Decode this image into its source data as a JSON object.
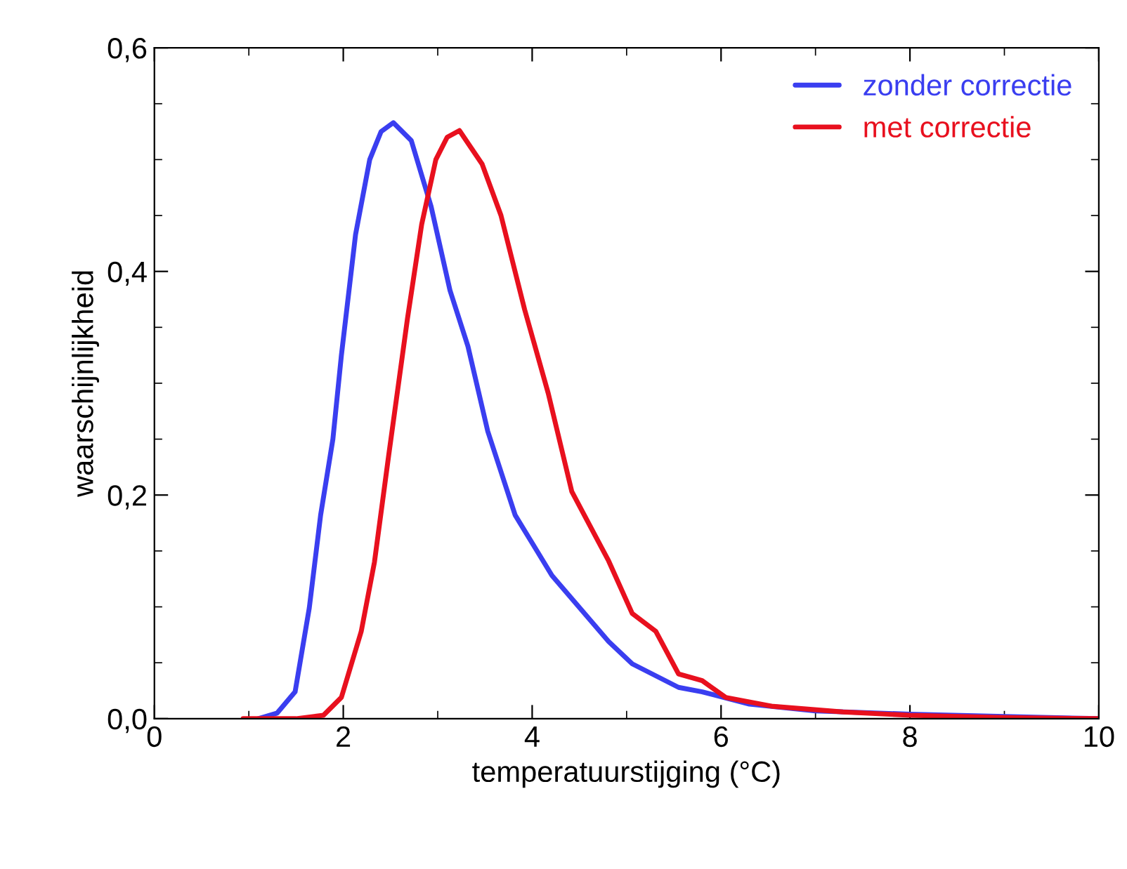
{
  "chart_data": {
    "type": "line",
    "xlabel": "temperatuurstijging (°C)",
    "ylabel": "waarschijnlijkheid",
    "xlim": [
      0,
      10
    ],
    "ylim": [
      0,
      0.6
    ],
    "xticks": [
      0,
      2,
      4,
      6,
      8,
      10
    ],
    "yticks": [
      {
        "value": 0,
        "label": "0,0"
      },
      {
        "value": 0.2,
        "label": "0,2"
      },
      {
        "value": 0.4,
        "label": "0,4"
      },
      {
        "value": 0.6,
        "label": "0,6"
      }
    ],
    "grid": false,
    "legend": "top right",
    "marker": "none",
    "line_style": "solid",
    "series": [
      {
        "name": "zonder correctie",
        "color": "#3a3ef0",
        "x": [
          1.1,
          1.3,
          1.49,
          1.64,
          1.76,
          1.89,
          1.98,
          2.13,
          2.28,
          2.4,
          2.53,
          2.72,
          2.93,
          3.13,
          3.32,
          3.53,
          3.82,
          4.21,
          4.81,
          5.06,
          5.55,
          5.8,
          6.3,
          7.0,
          8.0,
          9.0,
          10.0
        ],
        "values": [
          0.0,
          0.005,
          0.024,
          0.099,
          0.182,
          0.25,
          0.325,
          0.433,
          0.5,
          0.525,
          0.533,
          0.517,
          0.458,
          0.383,
          0.333,
          0.257,
          0.182,
          0.128,
          0.069,
          0.049,
          0.028,
          0.024,
          0.013,
          0.007,
          0.004,
          0.002,
          0.0
        ]
      },
      {
        "name": "met correctie",
        "color": "#e8101e",
        "x": [
          0.94,
          1.5,
          1.79,
          1.98,
          2.19,
          2.33,
          2.48,
          2.68,
          2.83,
          2.98,
          3.1,
          3.23,
          3.47,
          3.67,
          3.92,
          4.17,
          4.42,
          4.81,
          5.06,
          5.31,
          5.55,
          5.8,
          6.05,
          6.55,
          7.29,
          8.0,
          9.0,
          10.0
        ],
        "values": [
          0.0,
          0.0,
          0.003,
          0.019,
          0.078,
          0.14,
          0.235,
          0.358,
          0.442,
          0.5,
          0.52,
          0.526,
          0.496,
          0.45,
          0.366,
          0.291,
          0.203,
          0.141,
          0.094,
          0.078,
          0.04,
          0.034,
          0.019,
          0.011,
          0.006,
          0.003,
          0.001,
          0.0
        ]
      }
    ]
  }
}
